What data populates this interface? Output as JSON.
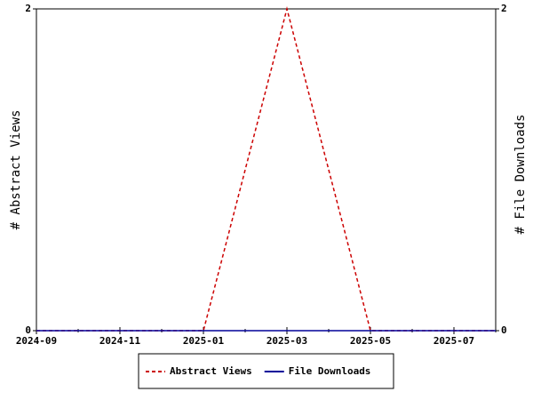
{
  "chart_data": {
    "type": "line",
    "x": [
      "2024-09",
      "2024-10",
      "2024-11",
      "2024-12",
      "2025-01",
      "2025-02",
      "2025-03",
      "2025-04",
      "2025-05",
      "2025-06",
      "2025-07",
      "2025-08"
    ],
    "series": [
      {
        "name": "Abstract Views",
        "color": "#cc0000",
        "dashed": true,
        "values": [
          0,
          0,
          0,
          0,
          0,
          1,
          2,
          1,
          0,
          0,
          0,
          0
        ]
      },
      {
        "name": "File Downloads",
        "color": "#000099",
        "dashed": false,
        "axis": "y2",
        "values": [
          0,
          0,
          0,
          0,
          0,
          0,
          0,
          0,
          0,
          0,
          0,
          0
        ]
      }
    ],
    "xlim": [
      "2024-09",
      "2025-08"
    ],
    "xticks": [
      "2024-09",
      "2024-11",
      "2025-01",
      "2025-03",
      "2025-05",
      "2025-07"
    ],
    "ylabel": "# Abstract Views",
    "ylim": [
      0,
      2
    ],
    "yticks": [
      0,
      2
    ],
    "y2label": "# File Downloads",
    "y2lim": [
      0,
      2
    ],
    "y2ticks": [
      0,
      2
    ],
    "legend": "bottom"
  }
}
